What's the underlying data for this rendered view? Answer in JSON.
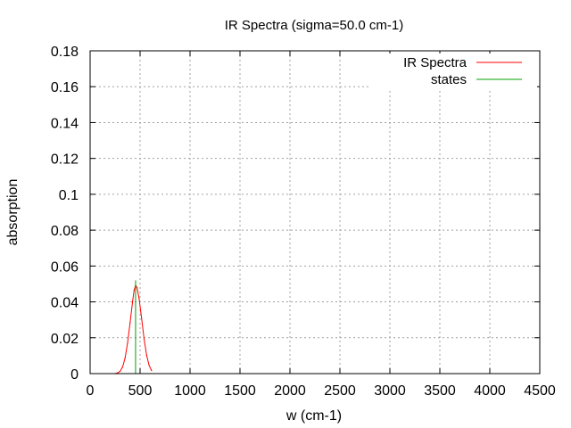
{
  "chart_data": {
    "type": "line",
    "title": "IR Spectra (sigma=50.0 cm-1)",
    "xlabel": "w (cm-1)",
    "ylabel": "absorption",
    "xlim": [
      0,
      4500
    ],
    "ylim": [
      0,
      0.18
    ],
    "x_ticks": [
      0,
      500,
      1000,
      1500,
      2000,
      2500,
      3000,
      3500,
      4000,
      4500
    ],
    "x_tick_labels": [
      "0",
      "500",
      "1000",
      "1500",
      "2000",
      "2500",
      "3000",
      "3500",
      "4000",
      "4500"
    ],
    "y_ticks": [
      0,
      0.02,
      0.04,
      0.06,
      0.08,
      0.1,
      0.12,
      0.14,
      0.16,
      0.18
    ],
    "y_tick_labels": [
      "0",
      "0.02",
      "0.04",
      "0.06",
      "0.08",
      "0.1",
      "0.12",
      "0.14",
      "0.16",
      "0.18"
    ],
    "grid": true,
    "legend_position": "top-right",
    "series": [
      {
        "name": "IR Spectra",
        "style": "line",
        "color": "#ff0000",
        "x": [
          250,
          275,
          300,
          325,
          350,
          375,
          400,
          425,
          440,
          455,
          470,
          490,
          515,
          540,
          565,
          590,
          615
        ],
        "y": [
          0.0,
          0.0004,
          0.0013,
          0.0037,
          0.0087,
          0.0171,
          0.0284,
          0.0402,
          0.0464,
          0.0493,
          0.048,
          0.0418,
          0.0309,
          0.0194,
          0.0103,
          0.0046,
          0.0017
        ]
      },
      {
        "name": "states",
        "style": "impulse",
        "color": "#00a000",
        "x": [
          455
        ],
        "y": [
          0.052
        ]
      }
    ]
  }
}
